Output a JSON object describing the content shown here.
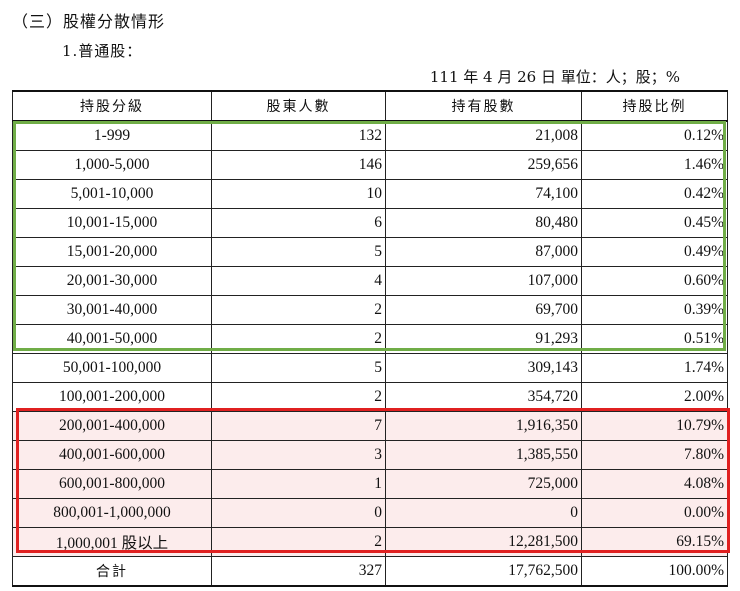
{
  "heading": "（三）股權分散情形",
  "subheading": "1.普通股：",
  "dateline": "111 年 4 月 26 日  單位：人；股；%",
  "table": {
    "headers": [
      "持股分級",
      "股東人數",
      "持有股數",
      "持股比例"
    ],
    "rows": [
      {
        "range": "1-999",
        "holders": "132",
        "shares": "21,008",
        "pct": "0.12%"
      },
      {
        "range": "1,000-5,000",
        "holders": "146",
        "shares": "259,656",
        "pct": "1.46%"
      },
      {
        "range": "5,001-10,000",
        "holders": "10",
        "shares": "74,100",
        "pct": "0.42%"
      },
      {
        "range": "10,001-15,000",
        "holders": "6",
        "shares": "80,480",
        "pct": "0.45%"
      },
      {
        "range": "15,001-20,000",
        "holders": "5",
        "shares": "87,000",
        "pct": "0.49%"
      },
      {
        "range": "20,001-30,000",
        "holders": "4",
        "shares": "107,000",
        "pct": "0.60%"
      },
      {
        "range": "30,001-40,000",
        "holders": "2",
        "shares": "69,700",
        "pct": "0.39%"
      },
      {
        "range": "40,001-50,000",
        "holders": "2",
        "shares": "91,293",
        "pct": "0.51%"
      },
      {
        "range": "50,001-100,000",
        "holders": "5",
        "shares": "309,143",
        "pct": "1.74%"
      },
      {
        "range": "100,001-200,000",
        "holders": "2",
        "shares": "354,720",
        "pct": "2.00%"
      },
      {
        "range": "200,001-400,000",
        "holders": "7",
        "shares": "1,916,350",
        "pct": "10.79%"
      },
      {
        "range": "400,001-600,000",
        "holders": "3",
        "shares": "1,385,550",
        "pct": "7.80%"
      },
      {
        "range": "600,001-800,000",
        "holders": "1",
        "shares": "725,000",
        "pct": "4.08%"
      },
      {
        "range": "800,001-1,000,000",
        "holders": "0",
        "shares": "0",
        "pct": "0.00%"
      },
      {
        "range": "1,000,001 股以上",
        "holders": "2",
        "shares": "12,281,500",
        "pct": "69.15%"
      }
    ],
    "total": {
      "range": "合計",
      "holders": "327",
      "shares": "17,762,500",
      "pct": "100.00%"
    }
  },
  "colors": {
    "green_box": "#70ad47",
    "red_box": "#e02020",
    "red_fill": "#fcecec"
  }
}
